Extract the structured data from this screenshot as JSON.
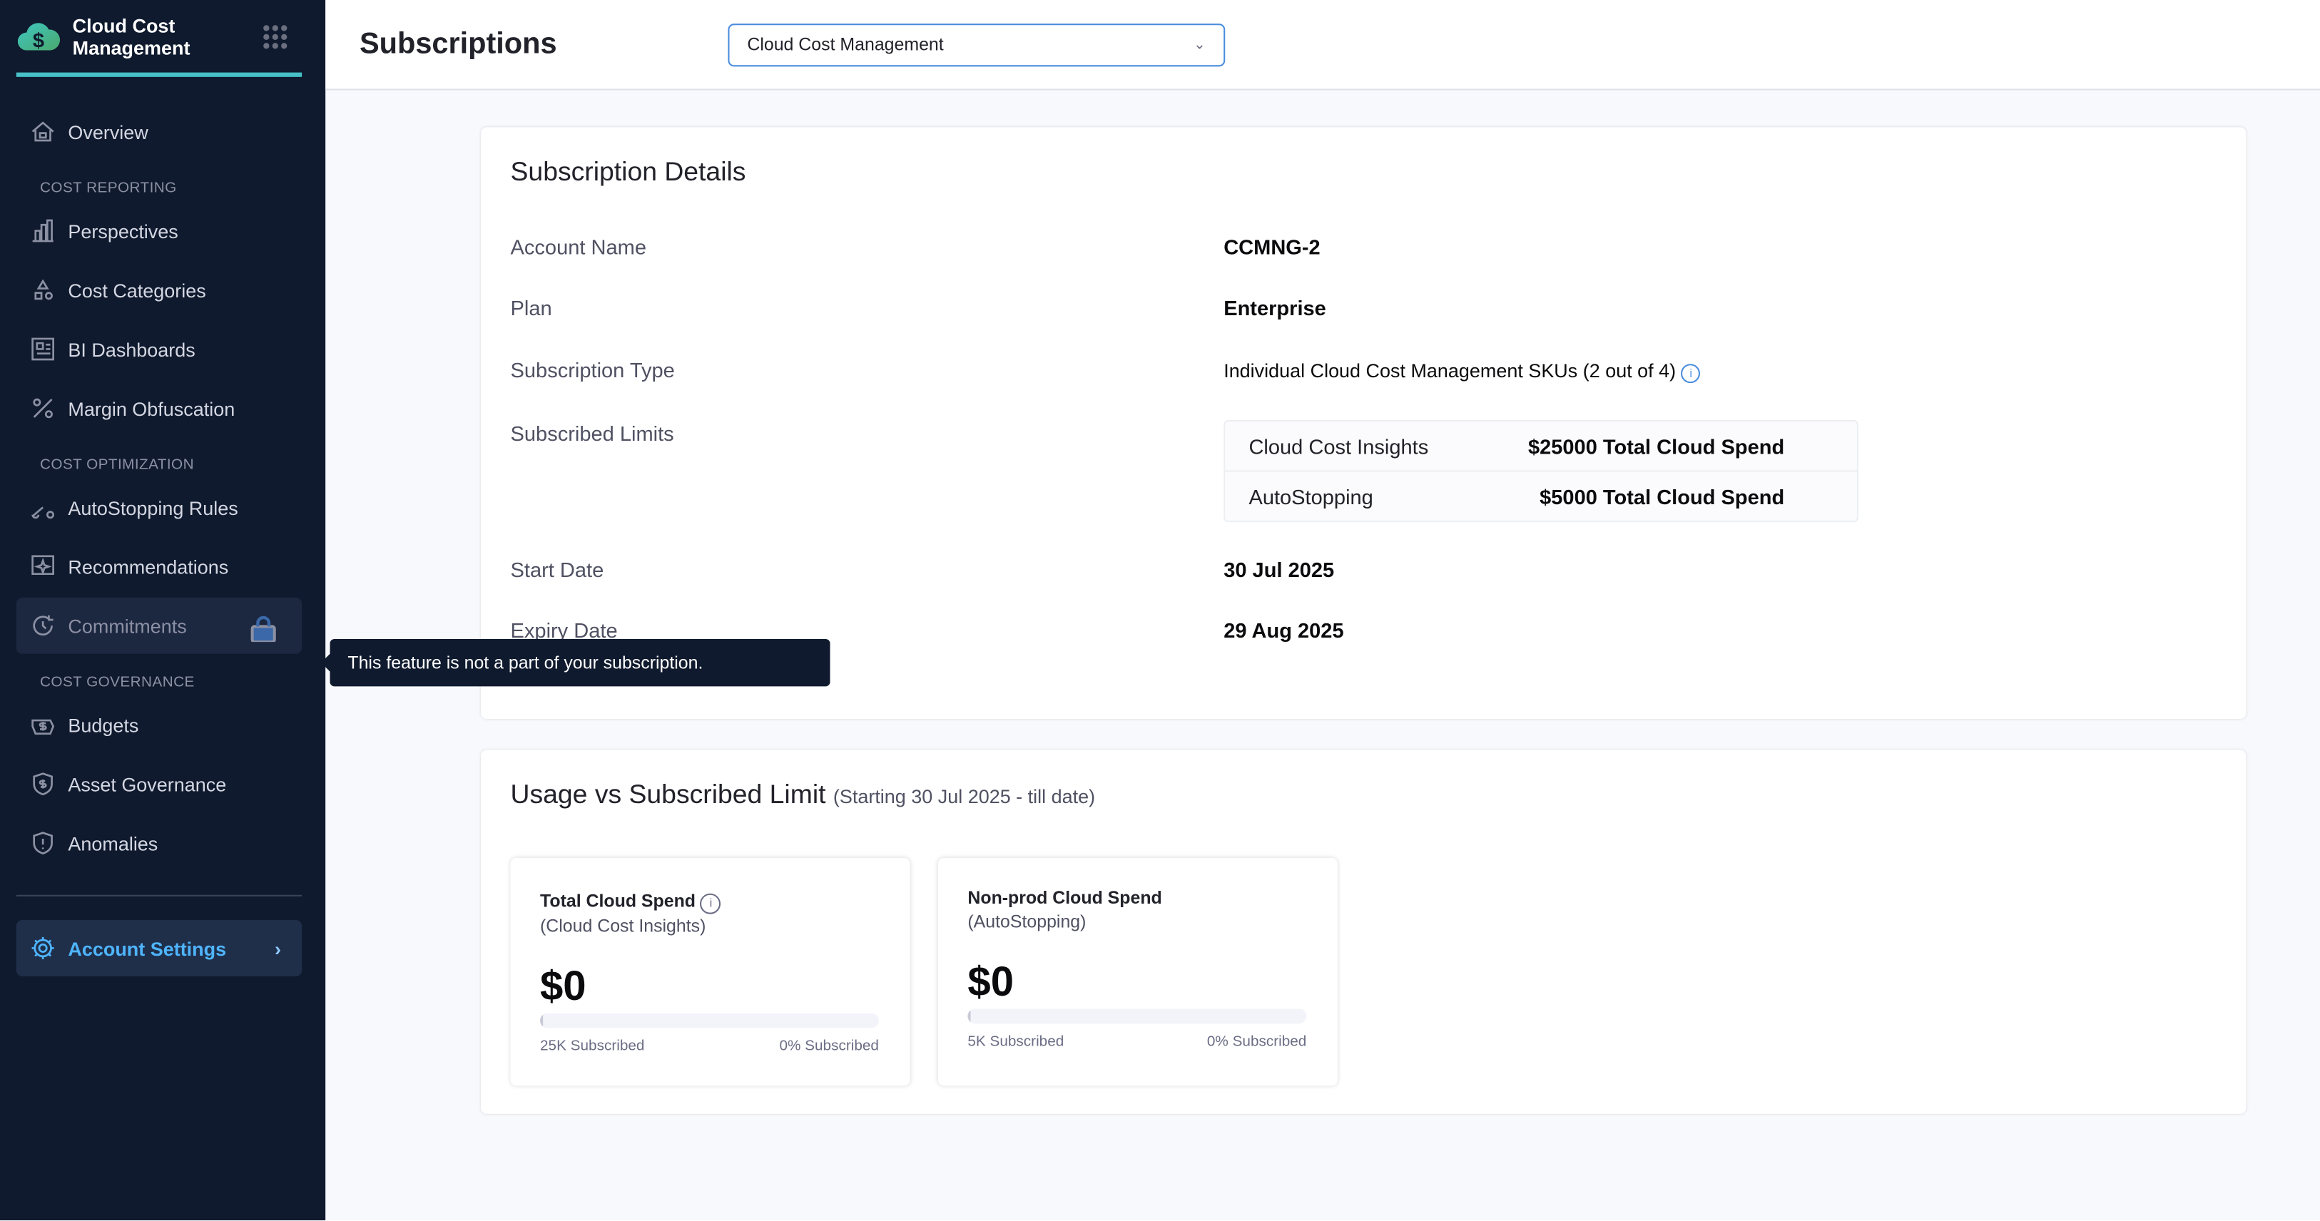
{
  "app": {
    "title": "Cloud Cost Management"
  },
  "sidebar": {
    "overview": "Overview",
    "sections": {
      "reporting": "COST REPORTING",
      "optimization": "COST OPTIMIZATION",
      "governance": "COST GOVERNANCE"
    },
    "items": {
      "perspectives": "Perspectives",
      "cost_categories": "Cost Categories",
      "bi_dashboards": "BI Dashboards",
      "margin": "Margin Obfuscation",
      "autostopping": "AutoStopping Rules",
      "recommendations": "Recommendations",
      "commitments": "Commitments",
      "budgets": "Budgets",
      "asset_governance": "Asset Governance",
      "anomalies": "Anomalies"
    },
    "account_settings": "Account Settings",
    "tooltip": "This feature is not a part of your subscription."
  },
  "header": {
    "title": "Subscriptions",
    "module_select": "Cloud Cost Management"
  },
  "details": {
    "title": "Subscription Details",
    "account_name_label": "Account Name",
    "account_name": "CCMNG-2",
    "plan_label": "Plan",
    "plan": "Enterprise",
    "type_label": "Subscription Type",
    "type": "Individual Cloud Cost Management SKUs (2 out of 4)",
    "limits_label": "Subscribed Limits",
    "limits": [
      {
        "name": "Cloud Cost Insights",
        "value": "$25000 Total Cloud Spend"
      },
      {
        "name": "AutoStopping",
        "value": "$5000 Total Cloud Spend"
      }
    ],
    "start_label": "Start Date",
    "start": "30 Jul 2025",
    "expiry_label": "Expiry Date",
    "expiry": "29 Aug 2025"
  },
  "usage": {
    "title": "Usage vs Subscribed Limit",
    "subtitle": "(Starting 30 Jul 2025 - till date)",
    "cards": [
      {
        "title": "Total Cloud Spend",
        "subtitle": "(Cloud Cost Insights)",
        "amount": "$0",
        "subscribed": "25K Subscribed",
        "percent_label": "0% Subscribed",
        "percent": 0
      },
      {
        "title": "Non-prod Cloud Spend",
        "subtitle": "(AutoStopping)",
        "amount": "$0",
        "subscribed": "5K Subscribed",
        "percent_label": "0% Subscribed",
        "percent": 0
      }
    ]
  },
  "colors": {
    "sidebar": "#0f1a2e",
    "accent": "#47c1c7",
    "link": "#4fb5ff"
  }
}
